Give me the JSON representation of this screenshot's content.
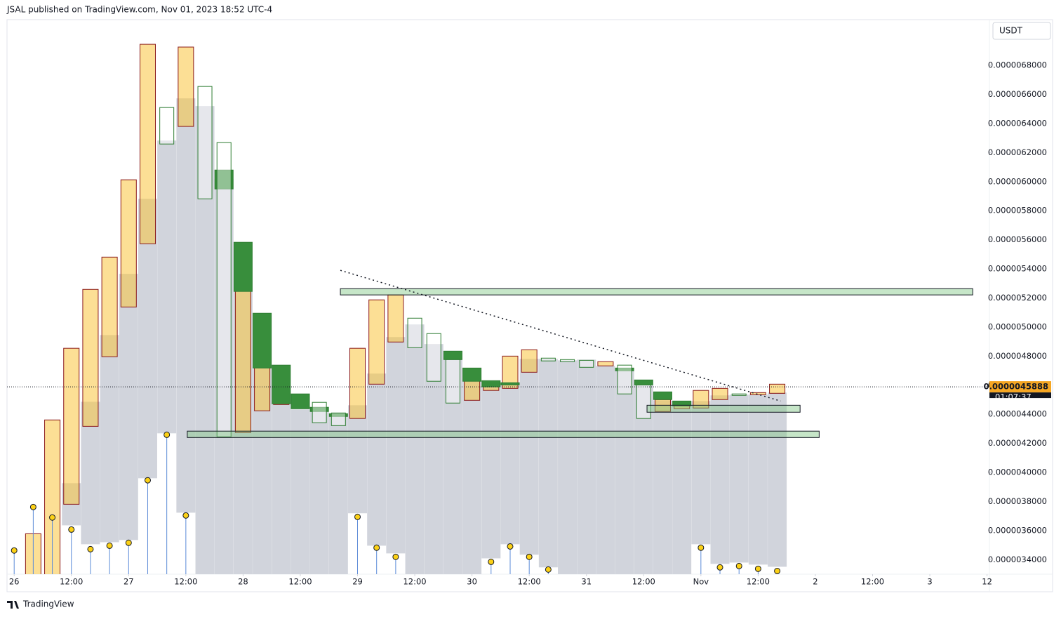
{
  "header": {
    "text": "JSAL published on TradingView.com, Nov 01, 2023 18:52 UTC-4"
  },
  "footer": {
    "brand": "TradingView"
  },
  "chart_data": {
    "type": "candlestick",
    "currency": "USDT",
    "xlim": [
      -1.5,
      204.5
    ],
    "ylim": [
      3.3e-06,
      7.1e-06
    ],
    "grid": false,
    "xticks": [
      {
        "value": 0,
        "label": "26"
      },
      {
        "value": 12,
        "label": "12:00"
      },
      {
        "value": 24,
        "label": "27"
      },
      {
        "value": 36,
        "label": "12:00"
      },
      {
        "value": 48,
        "label": "28"
      },
      {
        "value": 60,
        "label": "12:00"
      },
      {
        "value": 72,
        "label": "29"
      },
      {
        "value": 84,
        "label": "12:00"
      },
      {
        "value": 96,
        "label": "30"
      },
      {
        "value": 108,
        "label": "12:00"
      },
      {
        "value": 120,
        "label": "31"
      },
      {
        "value": 132,
        "label": "12:00"
      },
      {
        "value": 144,
        "label": "Nov"
      },
      {
        "value": 156,
        "label": "12:00"
      },
      {
        "value": 168,
        "label": "2"
      },
      {
        "value": 180,
        "label": "12:00"
      },
      {
        "value": 192,
        "label": "3"
      },
      {
        "value": 204,
        "label": "12"
      }
    ],
    "yticks": [
      {
        "value": 3.4e-06,
        "label": "0.0000034000"
      },
      {
        "value": 3.6e-06,
        "label": "0.0000036000"
      },
      {
        "value": 3.8e-06,
        "label": "0.0000038000"
      },
      {
        "value": 4e-06,
        "label": "0.0000040000"
      },
      {
        "value": 4.2e-06,
        "label": "0.0000042000"
      },
      {
        "value": 4.4e-06,
        "label": "0.0000044000"
      },
      {
        "value": 4.6e-06,
        "label": "0.0000046000"
      },
      {
        "value": 4.8e-06,
        "label": "0.0000048000"
      },
      {
        "value": 5e-06,
        "label": "0.0000050000"
      },
      {
        "value": 5.2e-06,
        "label": "0.0000052000"
      },
      {
        "value": 5.4e-06,
        "label": "0.0000054000"
      },
      {
        "value": 5.6e-06,
        "label": "0.0000056000"
      },
      {
        "value": 5.8e-06,
        "label": "0.0000058000"
      },
      {
        "value": 6e-06,
        "label": "0.0000060000"
      },
      {
        "value": 6.2e-06,
        "label": "0.0000062000"
      },
      {
        "value": 6.4e-06,
        "label": "0.0000064000"
      },
      {
        "value": 6.6e-06,
        "label": "0.0000066000"
      },
      {
        "value": 6.8e-06,
        "label": "0.0000068000"
      }
    ],
    "x": [
      0,
      4,
      8,
      12,
      16,
      20,
      24,
      28,
      32,
      36,
      40,
      44,
      48,
      52,
      56,
      60,
      64,
      68,
      72,
      76,
      80,
      84,
      88,
      92,
      96,
      100,
      104,
      108,
      112,
      116,
      120,
      124,
      128,
      132,
      136,
      140,
      144,
      148,
      152,
      156,
      160
    ],
    "series": [
      {
        "kind": "body",
        "style": "column",
        "color": "#d1d4dc",
        "width": 27,
        "top": [
          null,
          null,
          null,
          3.926e-06,
          4.486e-06,
          4.945e-06,
          5.366e-06,
          5.882e-06,
          6.283e-06,
          6.573e-06,
          6.52e-06,
          6.018e-06,
          5.245e-06,
          4.714e-06,
          4.602e-06,
          4.433e-06,
          4.419e-06,
          4.385e-06,
          4.462e-06,
          4.68e-06,
          4.931e-06,
          5.018e-06,
          4.883e-06,
          4.786e-06,
          4.641e-06,
          4.583e-06,
          4.602e-06,
          4.781e-06,
          4.781e-06,
          4.771e-06,
          4.776e-06,
          4.733e-06,
          4.704e-06,
          4.602e-06,
          4.496e-06,
          4.462e-06,
          4.491e-06,
          4.53e-06,
          4.535e-06,
          4.535e-06,
          4.549e-06
        ],
        "bottom": [
          null,
          null,
          null,
          3.636e-06,
          3.506e-06,
          3.52e-06,
          3.535e-06,
          3.96e-06,
          4.269e-06,
          3.723e-06,
          3.2e-06,
          3.2e-06,
          3.2e-06,
          3.2e-06,
          3.2e-06,
          3.2e-06,
          3.2e-06,
          3.2e-06,
          3.719e-06,
          3.496e-06,
          3.443e-06,
          3.2e-06,
          3.2e-06,
          3.2e-06,
          3.2e-06,
          3.409e-06,
          3.506e-06,
          3.434e-06,
          3.347e-06,
          3.2e-06,
          3.2e-06,
          3.2e-06,
          3.2e-06,
          3.2e-06,
          3.2e-06,
          3.2e-06,
          3.506e-06,
          3.371e-06,
          3.38e-06,
          3.366e-06,
          3.351e-06
        ]
      },
      {
        "kind": "body",
        "style": "filled",
        "color": "rgba(250,196,62,0.55)",
        "border": "#8b1a1a",
        "width": 22,
        "top": [
          null,
          3.578e-06,
          4.361e-06,
          4.854e-06,
          5.259e-06,
          5.481e-06,
          6.013e-06,
          6.945e-06,
          null,
          6.926e-06,
          null,
          null,
          5.254e-06,
          4.767e-06,
          4.593e-06,
          null,
          null,
          null,
          4.854e-06,
          5.187e-06,
          5.221e-06,
          null,
          null,
          null,
          4.641e-06,
          4.607e-06,
          4.8e-06,
          4.844e-06,
          null,
          null,
          null,
          4.762e-06,
          null,
          null,
          4.501e-06,
          4.482e-06,
          4.564e-06,
          4.578e-06,
          null,
          4.549e-06,
          4.607e-06
        ],
        "bottom": [
          null,
          3.2e-06,
          3.2e-06,
          3.781e-06,
          4.317e-06,
          4.796e-06,
          5.138e-06,
          5.573e-06,
          null,
          6.38e-06,
          null,
          null,
          4.274e-06,
          4.424e-06,
          4.467e-06,
          null,
          null,
          null,
          4.371e-06,
          4.607e-06,
          4.897e-06,
          null,
          null,
          null,
          4.496e-06,
          4.564e-06,
          4.578e-06,
          4.689e-06,
          null,
          null,
          null,
          4.733e-06,
          null,
          null,
          4.419e-06,
          4.438e-06,
          4.443e-06,
          4.501e-06,
          null,
          4.535e-06,
          4.544e-06
        ]
      },
      {
        "kind": "body",
        "style": "filled",
        "color": "#388e3c",
        "border": "#2e7d32",
        "width": 26,
        "top": [
          null,
          null,
          null,
          null,
          null,
          null,
          null,
          null,
          null,
          null,
          null,
          6.08e-06,
          5.583e-06,
          5.095e-06,
          4.738e-06,
          4.54e-06,
          4.448e-06,
          4.404e-06,
          null,
          null,
          null,
          null,
          null,
          4.834e-06,
          4.718e-06,
          4.631e-06,
          4.617e-06,
          null,
          null,
          null,
          null,
          null,
          4.718e-06,
          4.636e-06,
          4.554e-06,
          4.491e-06,
          null,
          null,
          null,
          null,
          null
        ],
        "bottom": [
          null,
          null,
          null,
          null,
          null,
          null,
          null,
          null,
          null,
          null,
          null,
          5.95e-06,
          5.245e-06,
          4.718e-06,
          4.472e-06,
          4.438e-06,
          4.419e-06,
          4.385e-06,
          null,
          null,
          null,
          null,
          null,
          4.776e-06,
          4.627e-06,
          4.588e-06,
          4.602e-06,
          null,
          null,
          null,
          null,
          null,
          4.699e-06,
          4.602e-06,
          4.501e-06,
          4.457e-06,
          null,
          null,
          null,
          null,
          null
        ]
      },
      {
        "kind": "body",
        "style": "hollow",
        "color": "rgba(255,255,255,0.45)",
        "border": "#2e7d32",
        "width": 20,
        "top": [
          null,
          null,
          null,
          null,
          null,
          null,
          null,
          null,
          6.51e-06,
          null,
          6.655e-06,
          6.269e-06,
          null,
          null,
          null,
          null,
          4.482e-06,
          4.409e-06,
          null,
          null,
          null,
          5.061e-06,
          4.955e-06,
          4.776e-06,
          null,
          null,
          null,
          null,
          4.786e-06,
          4.776e-06,
          4.771e-06,
          null,
          4.738e-06,
          4.602e-06,
          null,
          null,
          null,
          null,
          4.54e-06,
          null,
          null
        ],
        "bottom": [
          null,
          null,
          null,
          null,
          null,
          null,
          null,
          null,
          6.259e-06,
          null,
          5.882e-06,
          4.245e-06,
          null,
          null,
          null,
          null,
          4.342e-06,
          4.322e-06,
          null,
          null,
          null,
          4.858e-06,
          4.627e-06,
          4.477e-06,
          null,
          null,
          null,
          null,
          4.767e-06,
          4.762e-06,
          4.723e-06,
          null,
          4.54e-06,
          4.371e-06,
          null,
          null,
          null,
          null,
          4.53e-06,
          null,
          null
        ]
      },
      {
        "kind": "lollipop",
        "color": "#fcd116",
        "stem": "#5b8bd8",
        "values": [
          3.463e-06,
          3.762e-06,
          3.69e-06,
          3.607e-06,
          3.472e-06,
          3.496e-06,
          3.516e-06,
          3.946e-06,
          4.259e-06,
          3.704e-06,
          null,
          null,
          null,
          null,
          null,
          null,
          null,
          null,
          3.694e-06,
          3.482e-06,
          3.419e-06,
          null,
          null,
          null,
          null,
          3.385e-06,
          3.491e-06,
          3.419e-06,
          3.332e-06,
          null,
          null,
          null,
          null,
          null,
          null,
          null,
          3.482e-06,
          3.347e-06,
          3.356e-06,
          3.337e-06,
          3.322e-06
        ]
      }
    ],
    "zones": [
      {
        "x": [
          68.4,
          201
        ],
        "y": [
          5.264e-06,
          5.221e-06
        ],
        "color": "rgba(129,199,132,0.45)"
      },
      {
        "x": [
          36.3,
          168.8
        ],
        "y": [
          4.284e-06,
          4.24e-06
        ],
        "color": "rgba(129,199,132,0.45)"
      },
      {
        "x": [
          132.7,
          164.8
        ],
        "y": [
          4.462e-06,
          4.414e-06
        ],
        "color": "rgba(129,199,132,0.45)"
      }
    ],
    "trendline": {
      "x": [
        68.4,
        160.7
      ],
      "y": [
        5.39e-06,
        4.491e-06
      ]
    },
    "last_price": {
      "value": 4.5888e-06,
      "label": "0.0000045888",
      "countdown": "01:07:37",
      "color": "#f5a623"
    }
  }
}
